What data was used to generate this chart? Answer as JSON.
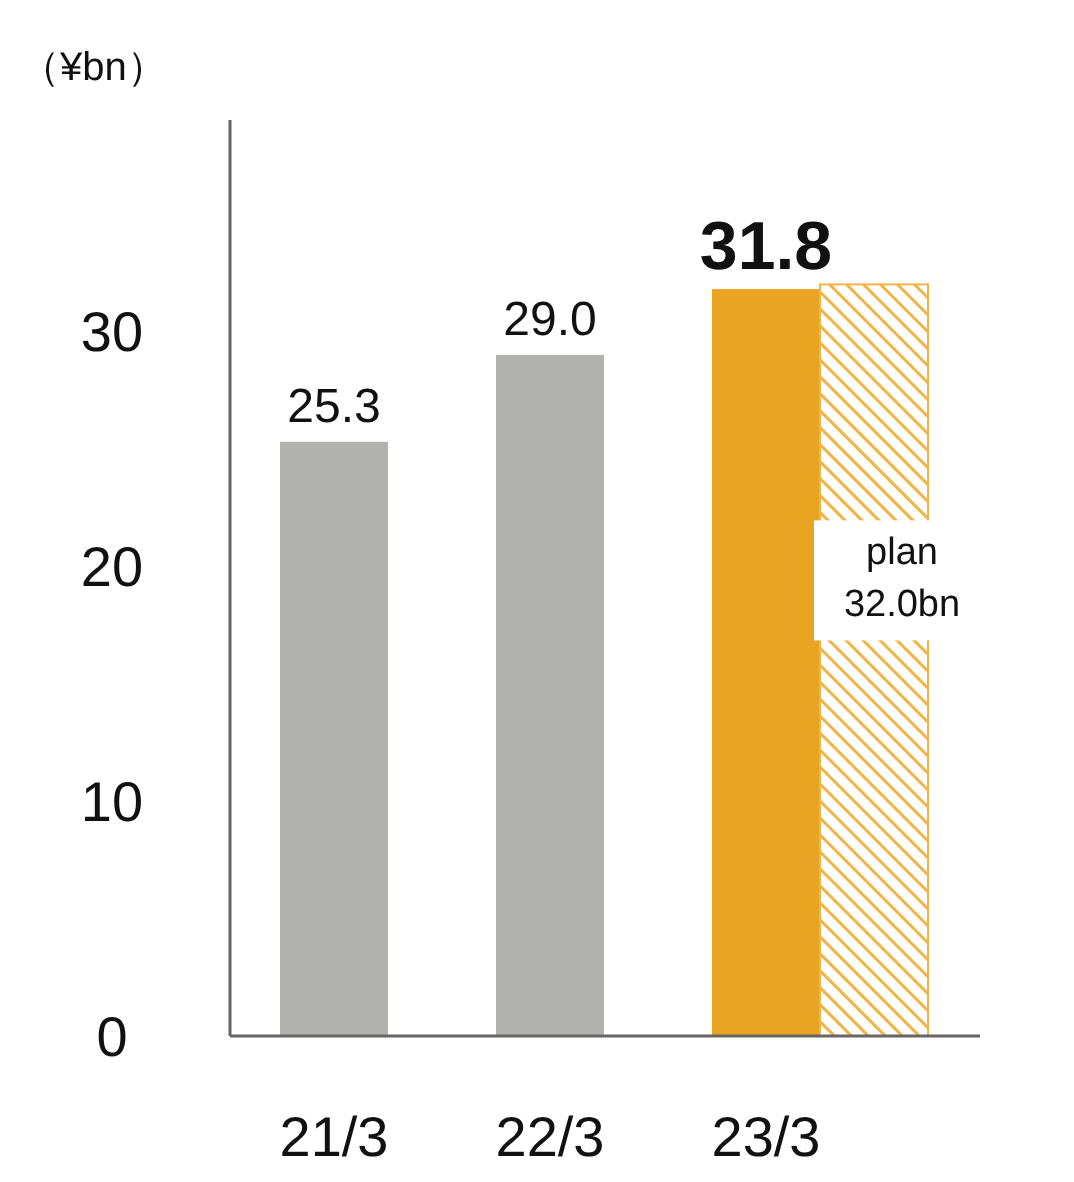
{
  "chart_data": {
    "type": "bar",
    "ylabel": "（¥bn）",
    "categories": [
      "21/3",
      "22/3",
      "23/3"
    ],
    "series": [
      {
        "colors": [
          "#b1b1ad",
          "#b1b1ad",
          "#eaa424"
        ],
        "values": [
          25.3,
          29.0,
          31.8
        ],
        "value_labels": [
          "25.3",
          "29.0",
          "31.8"
        ]
      },
      {
        "color": "#f2b445",
        "values": [
          null,
          null,
          32.0
        ],
        "value_labels": [
          null,
          null,
          "plan 32.0bn"
        ]
      }
    ],
    "ylim": [
      0,
      39
    ],
    "yticks": [
      0,
      10,
      20,
      30
    ],
    "grid": false
  }
}
